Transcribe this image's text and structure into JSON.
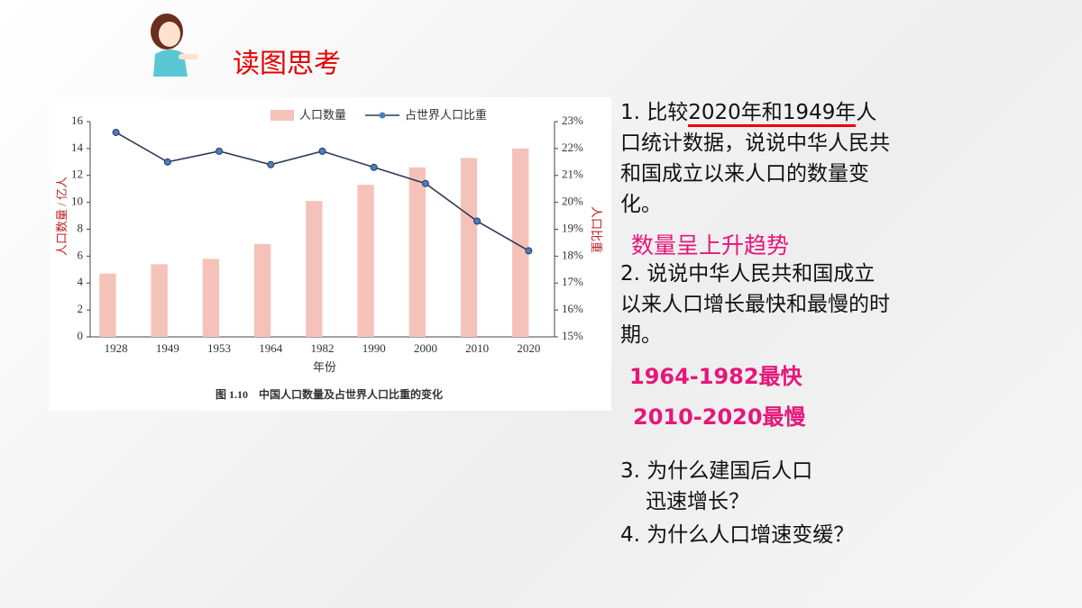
{
  "header": {
    "title": "读图思考"
  },
  "chart_data": {
    "type": "combo",
    "categories": [
      "1928",
      "1949",
      "1953",
      "1964",
      "1982",
      "1990",
      "2000",
      "2010",
      "2020"
    ],
    "series": [
      {
        "name": "人口数量",
        "type": "bar",
        "color": "#f5c2ba",
        "values": [
          4.7,
          5.4,
          5.8,
          6.9,
          10.1,
          11.3,
          12.6,
          13.3,
          14.0
        ]
      },
      {
        "name": "占世界人口比重",
        "type": "line",
        "axis": "y2",
        "color": "#2b3a5a",
        "marker_color": "#4a7fc0",
        "values": [
          22.6,
          21.5,
          21.9,
          21.4,
          21.9,
          21.3,
          20.7,
          19.3,
          18.2
        ]
      }
    ],
    "ylim": [
      0,
      16
    ],
    "yticks": [
      0,
      2,
      4,
      6,
      8,
      10,
      12,
      14,
      16
    ],
    "y2lim": [
      15,
      23
    ],
    "y2ticks": [
      {
        "value": 15,
        "label": "15%"
      },
      {
        "value": 16,
        "label": "16%"
      },
      {
        "value": 17,
        "label": "17%"
      },
      {
        "value": 18,
        "label": "18%"
      },
      {
        "value": 19,
        "label": "19%"
      },
      {
        "value": 20,
        "label": "20%"
      },
      {
        "value": 21,
        "label": "21%"
      },
      {
        "value": 22,
        "label": "22%"
      },
      {
        "value": 23,
        "label": "23%"
      }
    ],
    "ylabel": "人口数量 / 亿人",
    "y2label": "人口比重",
    "xlabel": "年份",
    "caption": "图 1.10　中国人口数量及占世界人口比重的变化"
  },
  "q1": {
    "prefix": "1. 比较",
    "highlight": "2020年和1949年",
    "suffix": "人口统计数据，说说中华人民共和国成立以来人口的数量变化。",
    "answer": "数量呈上升趋势"
  },
  "q2": {
    "text": "2. 说说中华人民共和国成立以来人口增长最快和最慢的时期。",
    "answers": [
      "1964-1982最快",
      "2010-2020最慢"
    ]
  },
  "q3": {
    "line1": "3. 为什么建国后人口",
    "line2": "迅速增长？"
  },
  "q4": "4. 为什么人口增速变缓？"
}
